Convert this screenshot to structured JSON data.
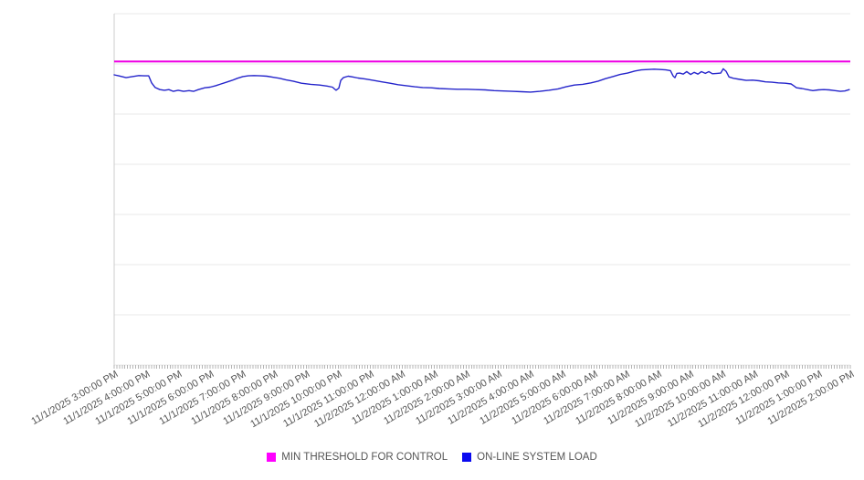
{
  "chart_data": {
    "type": "line",
    "title": "",
    "xlabel": "",
    "ylabel": "",
    "y_axis_labels_visible": false,
    "ylim": [
      0,
      100
    ],
    "y_gridline_divisions": 7,
    "grid_on": true,
    "grid_color": "#e9e9e9",
    "axis_line_color": "#cccccc",
    "minor_tick_color": "#b5b5b5",
    "axis_text_color": "#555555",
    "legend_position": "bottom-center",
    "x_minor_ticks_per_hour": 12,
    "x_tick_labels": [
      "11/1/2025 3:00:00 PM",
      "11/1/2025 4:00:00 PM",
      "11/1/2025 5:00:00 PM",
      "11/1/2025 6:00:00 PM",
      "11/1/2025 7:00:00 PM",
      "11/1/2025 8:00:00 PM",
      "11/1/2025 9:00:00 PM",
      "11/1/2025 10:00:00 PM",
      "11/1/2025 11:00:00 PM",
      "11/2/2025 12:00:00 AM",
      "11/2/2025 1:00:00 AM",
      "11/2/2025 2:00:00 AM",
      "11/2/2025 3:00:00 AM",
      "11/2/2025 4:00:00 AM",
      "11/2/2025 5:00:00 AM",
      "11/2/2025 6:00:00 AM",
      "11/2/2025 7:00:00 AM",
      "11/2/2025 8:00:00 AM",
      "11/2/2025 9:00:00 AM",
      "11/2/2025 10:00:00 AM",
      "11/2/2025 11:00:00 AM",
      "11/2/2025 12:00:00 PM",
      "11/2/2025 1:00:00 PM",
      "11/2/2025 2:00:00 PM"
    ],
    "series": [
      {
        "name": "MIN THRESHOLD FOR CONTROL",
        "type": "threshold",
        "line_color": "#ee00e4",
        "swatch_color": "#ff00ff",
        "value": 86.4
      },
      {
        "name": "ON-LINE SYSTEM LOAD",
        "type": "line",
        "line_color": "#2525cb",
        "swatch_color": "#0a0af0",
        "points": [
          [
            0,
            82.6
          ],
          [
            0.14,
            82.3
          ],
          [
            0.37,
            81.8
          ],
          [
            0.57,
            82.1
          ],
          [
            0.77,
            82.4
          ],
          [
            0.94,
            82.3
          ],
          [
            1.08,
            82.3
          ],
          [
            1.17,
            80.3
          ],
          [
            1.28,
            79
          ],
          [
            1.43,
            78.4
          ],
          [
            1.57,
            78.2
          ],
          [
            1.71,
            78.4
          ],
          [
            1.85,
            77.9
          ],
          [
            2,
            78.2
          ],
          [
            2.17,
            77.9
          ],
          [
            2.34,
            78.1
          ],
          [
            2.48,
            77.9
          ],
          [
            2.63,
            78.4
          ],
          [
            2.83,
            78.9
          ],
          [
            3,
            79.1
          ],
          [
            3.17,
            79.5
          ],
          [
            3.34,
            80
          ],
          [
            3.51,
            80.5
          ],
          [
            3.68,
            81
          ],
          [
            3.85,
            81.6
          ],
          [
            4.02,
            82.1
          ],
          [
            4.19,
            82.3
          ],
          [
            4.37,
            82.4
          ],
          [
            4.57,
            82.3
          ],
          [
            4.77,
            82.2
          ],
          [
            4.97,
            81.9
          ],
          [
            5.17,
            81.6
          ],
          [
            5.36,
            81.2
          ],
          [
            5.59,
            80.8
          ],
          [
            5.85,
            80.2
          ],
          [
            6.14,
            79.9
          ],
          [
            6.42,
            79.7
          ],
          [
            6.65,
            79.4
          ],
          [
            6.82,
            79.1
          ],
          [
            6.93,
            78.2
          ],
          [
            7.02,
            78.8
          ],
          [
            7.08,
            81
          ],
          [
            7.16,
            81.8
          ],
          [
            7.31,
            82.2
          ],
          [
            7.45,
            82
          ],
          [
            7.62,
            81.7
          ],
          [
            7.85,
            81.4
          ],
          [
            8.1,
            81
          ],
          [
            8.36,
            80.6
          ],
          [
            8.62,
            80.2
          ],
          [
            8.87,
            79.8
          ],
          [
            9.13,
            79.5
          ],
          [
            9.39,
            79.2
          ],
          [
            9.64,
            79
          ],
          [
            9.9,
            78.9
          ],
          [
            10.16,
            78.7
          ],
          [
            10.44,
            78.6
          ],
          [
            10.73,
            78.5
          ],
          [
            11.01,
            78.5
          ],
          [
            11.3,
            78.4
          ],
          [
            11.59,
            78.3
          ],
          [
            11.87,
            78.1
          ],
          [
            12.16,
            78
          ],
          [
            12.44,
            77.9
          ],
          [
            12.73,
            77.8
          ],
          [
            13.01,
            77.7
          ],
          [
            13.3,
            77.9
          ],
          [
            13.58,
            78.2
          ],
          [
            13.87,
            78.6
          ],
          [
            14.12,
            79.2
          ],
          [
            14.38,
            79.7
          ],
          [
            14.64,
            79.9
          ],
          [
            14.9,
            80.3
          ],
          [
            15.12,
            80.8
          ],
          [
            15.35,
            81.5
          ],
          [
            15.58,
            82.1
          ],
          [
            15.81,
            82.7
          ],
          [
            16.04,
            83.1
          ],
          [
            16.27,
            83.7
          ],
          [
            16.47,
            84
          ],
          [
            16.67,
            84.1
          ],
          [
            16.87,
            84.2
          ],
          [
            17.07,
            84.1
          ],
          [
            17.24,
            84
          ],
          [
            17.38,
            83.8
          ],
          [
            17.46,
            82.3
          ],
          [
            17.52,
            81.8
          ],
          [
            17.58,
            83
          ],
          [
            17.67,
            83.1
          ],
          [
            17.78,
            82.8
          ],
          [
            17.89,
            83.5
          ],
          [
            18.01,
            82.7
          ],
          [
            18.12,
            83.3
          ],
          [
            18.24,
            82.8
          ],
          [
            18.35,
            83.5
          ],
          [
            18.47,
            83
          ],
          [
            18.58,
            83.5
          ],
          [
            18.69,
            82.9
          ],
          [
            18.84,
            83
          ],
          [
            18.95,
            83.1
          ],
          [
            19.03,
            84.3
          ],
          [
            19.12,
            83.6
          ],
          [
            19.21,
            82
          ],
          [
            19.35,
            81.6
          ],
          [
            19.55,
            81.3
          ],
          [
            19.75,
            81
          ],
          [
            19.95,
            81.1
          ],
          [
            20.15,
            80.9
          ],
          [
            20.35,
            80.6
          ],
          [
            20.55,
            80.5
          ],
          [
            20.75,
            80.3
          ],
          [
            20.97,
            80.2
          ],
          [
            21.15,
            80
          ],
          [
            21.23,
            79.5
          ],
          [
            21.32,
            78.9
          ],
          [
            21.49,
            78.7
          ],
          [
            21.66,
            78.4
          ],
          [
            21.83,
            78.1
          ],
          [
            22,
            78.3
          ],
          [
            22.17,
            78.4
          ],
          [
            22.34,
            78.3
          ],
          [
            22.52,
            78.1
          ],
          [
            22.69,
            77.9
          ],
          [
            22.83,
            78
          ],
          [
            22.97,
            78.4
          ]
        ]
      }
    ]
  }
}
